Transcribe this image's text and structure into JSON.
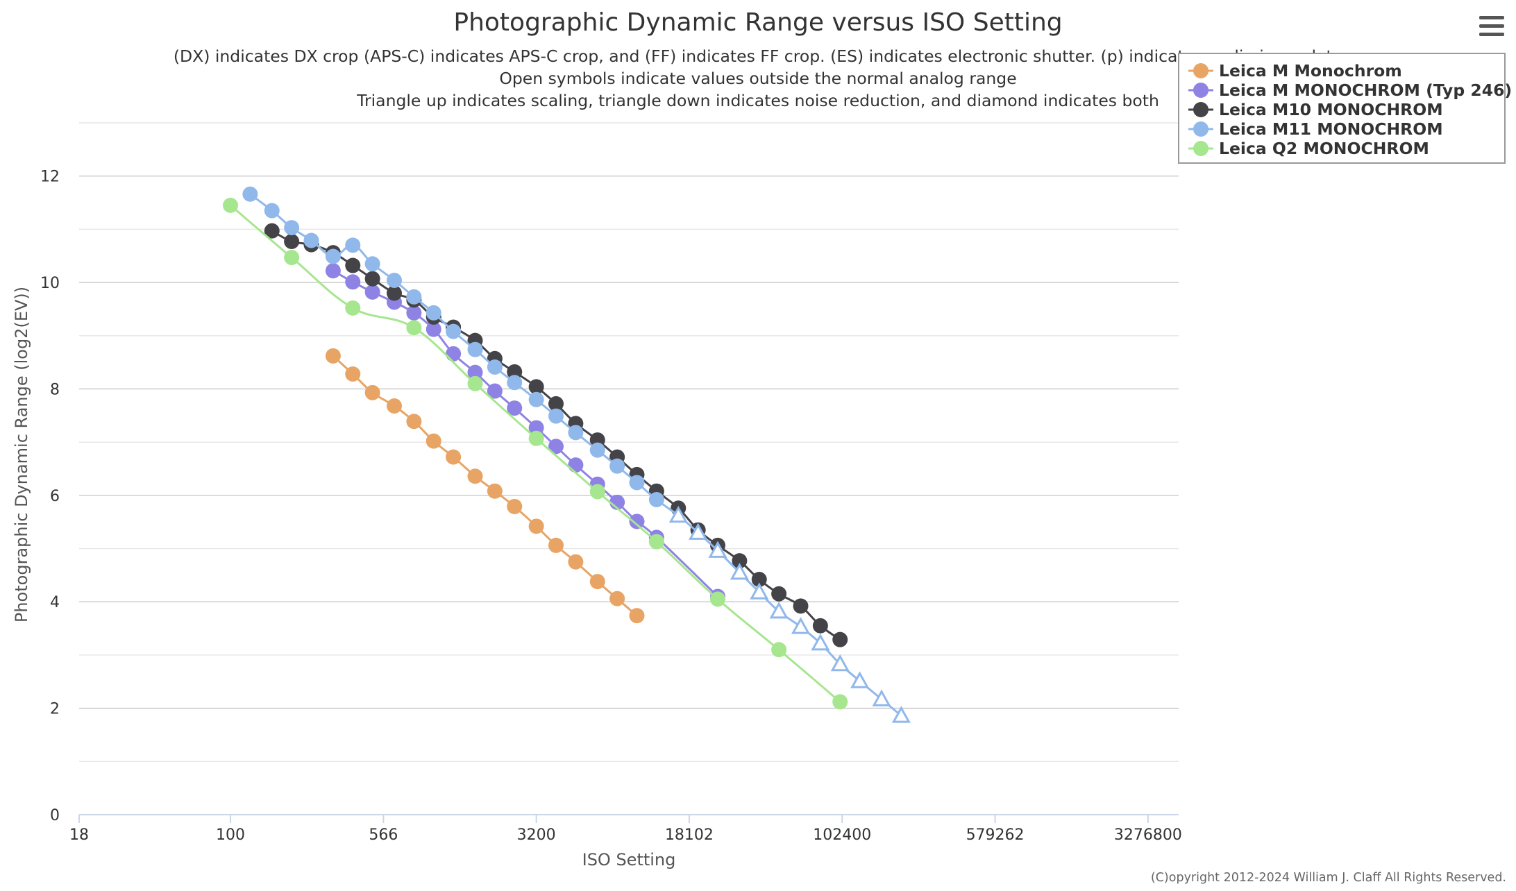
{
  "chart_data": {
    "type": "line",
    "title": "Photographic Dynamic Range versus ISO Setting",
    "subtitle_lines": [
      "(DX) indicates DX crop (APS-C) indicates APS-C crop, and (FF) indicates FF crop. (ES) indicates electronic shutter. (p) indicates preliminary data",
      "Open symbols indicate values outside the normal analog range",
      "Triangle up indicates scaling, triangle down indicates noise reduction, and diamond indicates both"
    ],
    "xlabel": "ISO Setting",
    "ylabel": "Photographic Dynamic Range (log2(EV))",
    "x_scale": "log2",
    "x_ticks": [
      "18",
      "100",
      "566",
      "3200",
      "18102",
      "102400",
      "579262",
      "3276800"
    ],
    "x_tick_values": [
      18,
      100,
      566,
      3200,
      18102,
      102400,
      579262,
      3276800
    ],
    "xlim": [
      18,
      4636372
    ],
    "y_ticks": [
      "0",
      "2",
      "4",
      "6",
      "8",
      "10",
      "12"
    ],
    "y_tick_values": [
      0,
      2,
      4,
      6,
      8,
      10,
      12
    ],
    "ylim": [
      0,
      13
    ],
    "grid": true,
    "legend_position": "top-right",
    "credit": "(C)opyright 2012-2024 William J. Claff All Rights Reserved.",
    "series": [
      {
        "name": "Leica M Monochrom",
        "color": "#E8A465",
        "points": [
          {
            "x": 320,
            "y": 8.62
          },
          {
            "x": 400,
            "y": 8.28
          },
          {
            "x": 500,
            "y": 7.93
          },
          {
            "x": 640,
            "y": 7.68
          },
          {
            "x": 800,
            "y": 7.39
          },
          {
            "x": 1000,
            "y": 7.02
          },
          {
            "x": 1250,
            "y": 6.72
          },
          {
            "x": 1600,
            "y": 6.36
          },
          {
            "x": 2000,
            "y": 6.08
          },
          {
            "x": 2500,
            "y": 5.79
          },
          {
            "x": 3200,
            "y": 5.42
          },
          {
            "x": 4000,
            "y": 5.06
          },
          {
            "x": 5000,
            "y": 4.75
          },
          {
            "x": 6400,
            "y": 4.38
          },
          {
            "x": 8000,
            "y": 4.06
          },
          {
            "x": 10000,
            "y": 3.74
          }
        ]
      },
      {
        "name": "Leica M MONOCHROM (Typ 246)",
        "color": "#8E83E4",
        "points": [
          {
            "x": 320,
            "y": 10.22
          },
          {
            "x": 400,
            "y": 10.01
          },
          {
            "x": 500,
            "y": 9.82
          },
          {
            "x": 640,
            "y": 9.63
          },
          {
            "x": 800,
            "y": 9.43
          },
          {
            "x": 1000,
            "y": 9.12
          },
          {
            "x": 1250,
            "y": 8.66
          },
          {
            "x": 1600,
            "y": 8.31
          },
          {
            "x": 2000,
            "y": 7.96
          },
          {
            "x": 2500,
            "y": 7.64
          },
          {
            "x": 3200,
            "y": 7.27
          },
          {
            "x": 4000,
            "y": 6.92
          },
          {
            "x": 5000,
            "y": 6.57
          },
          {
            "x": 6400,
            "y": 6.21
          },
          {
            "x": 8000,
            "y": 5.87
          },
          {
            "x": 10000,
            "y": 5.51
          },
          {
            "x": 12500,
            "y": 5.21
          },
          {
            "x": 25000,
            "y": 4.1
          }
        ]
      },
      {
        "name": "Leica M10 MONOCHROM",
        "color": "#434348",
        "points": [
          {
            "x": 160,
            "y": 10.97
          },
          {
            "x": 200,
            "y": 10.77
          },
          {
            "x": 250,
            "y": 10.71
          },
          {
            "x": 320,
            "y": 10.56
          },
          {
            "x": 400,
            "y": 10.32
          },
          {
            "x": 500,
            "y": 10.07
          },
          {
            "x": 640,
            "y": 9.8
          },
          {
            "x": 800,
            "y": 9.67
          },
          {
            "x": 1000,
            "y": 9.35
          },
          {
            "x": 1250,
            "y": 9.16
          },
          {
            "x": 1600,
            "y": 8.91
          },
          {
            "x": 2000,
            "y": 8.57
          },
          {
            "x": 2500,
            "y": 8.32
          },
          {
            "x": 3200,
            "y": 8.04
          },
          {
            "x": 4000,
            "y": 7.72
          },
          {
            "x": 5000,
            "y": 7.35
          },
          {
            "x": 6400,
            "y": 7.04
          },
          {
            "x": 8000,
            "y": 6.72
          },
          {
            "x": 10000,
            "y": 6.39
          },
          {
            "x": 12500,
            "y": 6.08
          },
          {
            "x": 16000,
            "y": 5.76
          },
          {
            "x": 20000,
            "y": 5.35
          },
          {
            "x": 25000,
            "y": 5.06
          },
          {
            "x": 32000,
            "y": 4.77
          },
          {
            "x": 40000,
            "y": 4.42
          },
          {
            "x": 50000,
            "y": 4.15
          },
          {
            "x": 64000,
            "y": 3.92
          },
          {
            "x": 80000,
            "y": 3.55
          },
          {
            "x": 100000,
            "y": 3.29
          }
        ]
      },
      {
        "name": "Leica M11 MONOCHROM",
        "color": "#90B8EA",
        "points": [
          {
            "x": 125,
            "y": 11.66
          },
          {
            "x": 160,
            "y": 11.35
          },
          {
            "x": 200,
            "y": 11.03
          },
          {
            "x": 250,
            "y": 10.79
          },
          {
            "x": 320,
            "y": 10.49
          },
          {
            "x": 400,
            "y": 10.7
          },
          {
            "x": 500,
            "y": 10.35
          },
          {
            "x": 640,
            "y": 10.04
          },
          {
            "x": 800,
            "y": 9.73
          },
          {
            "x": 1000,
            "y": 9.43
          },
          {
            "x": 1250,
            "y": 9.08
          },
          {
            "x": 1600,
            "y": 8.74
          },
          {
            "x": 2000,
            "y": 8.41
          },
          {
            "x": 2500,
            "y": 8.12
          },
          {
            "x": 3200,
            "y": 7.8
          },
          {
            "x": 4000,
            "y": 7.49
          },
          {
            "x": 5000,
            "y": 7.18
          },
          {
            "x": 6400,
            "y": 6.85
          },
          {
            "x": 8000,
            "y": 6.55
          },
          {
            "x": 10000,
            "y": 6.24
          },
          {
            "x": 12500,
            "y": 5.92
          },
          {
            "x": 16000,
            "y": 5.62,
            "marker": "triangle-up-open"
          },
          {
            "x": 20000,
            "y": 5.3,
            "marker": "triangle-up-open"
          },
          {
            "x": 25000,
            "y": 4.96,
            "marker": "triangle-up-open"
          },
          {
            "x": 32000,
            "y": 4.55,
            "marker": "triangle-up-open"
          },
          {
            "x": 40000,
            "y": 4.18,
            "marker": "triangle-up-open"
          },
          {
            "x": 50000,
            "y": 3.82,
            "marker": "triangle-up-open"
          },
          {
            "x": 64000,
            "y": 3.53,
            "marker": "triangle-up-open"
          },
          {
            "x": 80000,
            "y": 3.22,
            "marker": "triangle-up-open"
          },
          {
            "x": 100000,
            "y": 2.83,
            "marker": "triangle-up-open"
          },
          {
            "x": 125000,
            "y": 2.51,
            "marker": "triangle-up-open"
          },
          {
            "x": 160000,
            "y": 2.17,
            "marker": "triangle-up-open"
          },
          {
            "x": 200000,
            "y": 1.86,
            "marker": "triangle-up-open"
          }
        ]
      },
      {
        "name": "Leica Q2 MONOCHROM",
        "color": "#A6E68F",
        "points": [
          {
            "x": 100,
            "y": 11.45
          },
          {
            "x": 200,
            "y": 10.47
          },
          {
            "x": 400,
            "y": 9.52
          },
          {
            "x": 800,
            "y": 9.15
          },
          {
            "x": 1600,
            "y": 8.1
          },
          {
            "x": 3200,
            "y": 7.07
          },
          {
            "x": 6400,
            "y": 6.07
          },
          {
            "x": 12500,
            "y": 5.13
          },
          {
            "x": 25000,
            "y": 4.05
          },
          {
            "x": 50000,
            "y": 3.1
          },
          {
            "x": 100000,
            "y": 2.12
          }
        ]
      }
    ]
  }
}
